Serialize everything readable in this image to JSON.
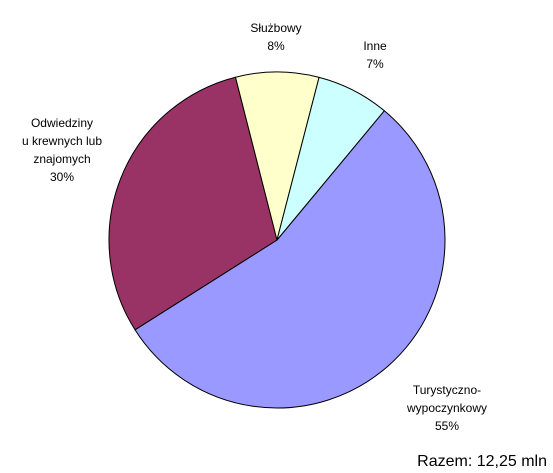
{
  "chart_data": {
    "type": "pie",
    "categories": [
      "Turystyczno-\nwypoczynkowy",
      "Odwiedziny\nu krewnych lub\nznajomych",
      "Służbowy",
      "Inne"
    ],
    "values": [
      55,
      30,
      8,
      7
    ],
    "value_labels": [
      "55%",
      "30%",
      "8%",
      "7%"
    ],
    "colors": [
      "#9999ff",
      "#993366",
      "#ffffcc",
      "#ccffff"
    ],
    "annotation": "Razem: 12,25 mln"
  }
}
